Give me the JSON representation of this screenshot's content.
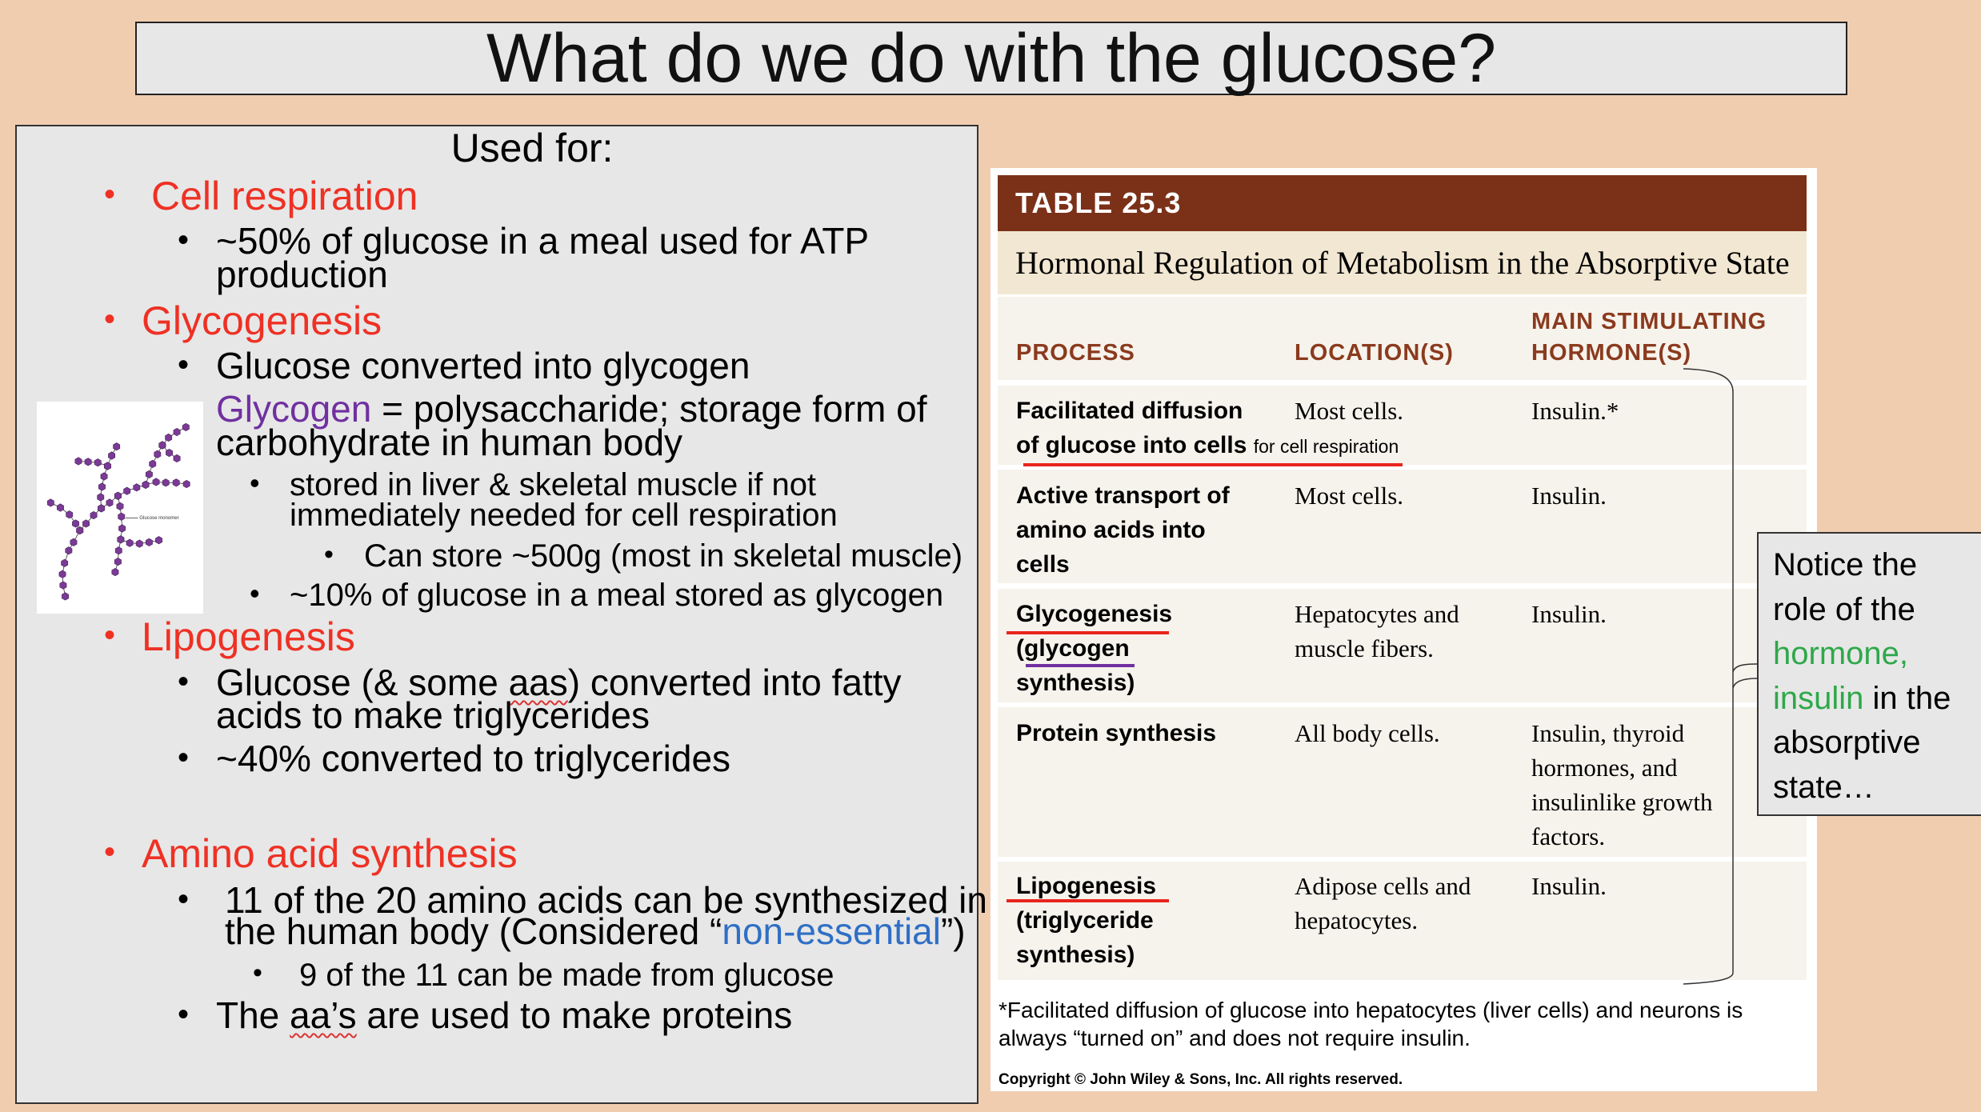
{
  "title": "What do we do with the glucose?",
  "left": {
    "heading": "Used for:",
    "cell_resp": {
      "title": "Cell respiration",
      "l1": "~50% of glucose in a meal used for ATP",
      "l2": "production"
    },
    "glycogenesis": {
      "title": "Glycogenesis",
      "l1": "Glucose converted into glycogen",
      "glycogen_word": "Glycogen",
      "def_rest": " = polysaccharide; storage form of",
      "def_l2": "carbohydrate in human body",
      "s1a": "stored in liver & skeletal muscle if not",
      "s1b": "immediately needed for cell respiration",
      "s2": "Can store ~500g (most in skeletal muscle)",
      "s3": "~10% of glucose in a meal stored as glycogen"
    },
    "lipogenesis": {
      "title": "Lipogenesis",
      "l1a": "Glucose (& some ",
      "l1b": "aas",
      "l1c": ") converted into fatty",
      "l2": "acids to make triglycerides",
      "l3": "~40% converted to triglycerides"
    },
    "amino": {
      "title": "Amino acid synthesis",
      "l1": "11 of the 20 amino acids can be synthesized in",
      "l2a": "the human body (Considered “",
      "l2b": "non-essential",
      "l2c": "”)",
      "s1": "9 of the 11 can be made from glucose",
      "l3a": "The ",
      "l3b": "aa’s",
      "l3c": " are used to make proteins"
    },
    "image_label": "Glucose monomer"
  },
  "table": {
    "number": "TABLE 25.3",
    "subtitle": "Hormonal Regulation of Metabolism in the Absorptive State",
    "headers": {
      "process": "PROCESS",
      "location": "LOCATION(S)",
      "hormone1": "MAIN STIMULATING",
      "hormone2": "HORMONE(S)"
    },
    "rows": [
      {
        "p": [
          "Facilitated diffusion",
          "of glucose into cells"
        ],
        "p_note": "for cell respiration",
        "l": [
          "Most cells."
        ],
        "h": [
          "Insulin.*"
        ]
      },
      {
        "p": [
          "Active transport of",
          "amino acids into",
          "cells"
        ],
        "l": [
          "Most cells."
        ],
        "h": [
          "Insulin."
        ]
      },
      {
        "p": [
          "Glycogenesis",
          "(glycogen",
          "synthesis)"
        ],
        "l": [
          "Hepatocytes and",
          "muscle fibers."
        ],
        "h": [
          "Insulin."
        ]
      },
      {
        "p": [
          "Protein synthesis"
        ],
        "l": [
          "All body cells."
        ],
        "h": [
          "Insulin, thyroid",
          "hormones, and",
          "insulinlike growth",
          "factors."
        ]
      },
      {
        "p": [
          "Lipogenesis",
          "(triglyceride",
          "synthesis)"
        ],
        "l": [
          "Adipose cells and",
          "hepatocytes."
        ],
        "h": [
          "Insulin."
        ]
      }
    ],
    "footnote1": "*Facilitated diffusion of glucose into hepatocytes (liver cells) and neurons is",
    "footnote2": "always “turned on” and does not require insulin.",
    "copyright": "Copyright © John Wiley & Sons, Inc. All rights reserved."
  },
  "callout": {
    "l1": "Notice the",
    "l2": "role of the",
    "l3": "hormone,",
    "l4a": "insulin",
    "l4b": " in the",
    "l5": "absorptive",
    "l6": "state…"
  },
  "colors": {
    "background": "#f1cdb0",
    "panel": "#e7e7e7",
    "red": "#ee3124",
    "purple": "#7030a0",
    "blue": "#2f6fc5",
    "green": "#2ea84a",
    "table_header": "#7b3118"
  }
}
